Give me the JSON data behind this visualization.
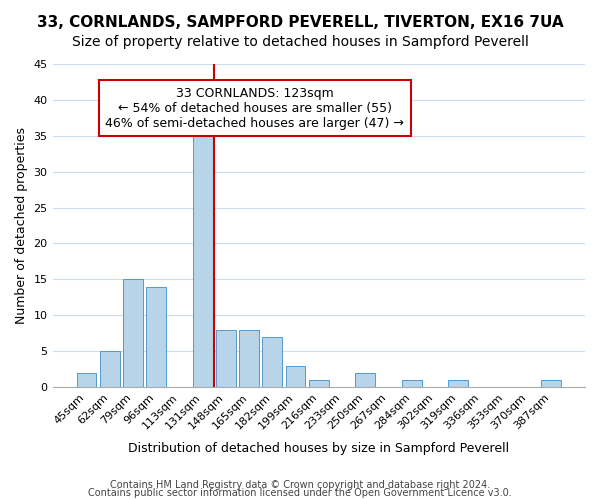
{
  "title": "33, CORNLANDS, SAMPFORD PEVERELL, TIVERTON, EX16 7UA",
  "subtitle": "Size of property relative to detached houses in Sampford Peverell",
  "xlabel": "Distribution of detached houses by size in Sampford Peverell",
  "ylabel": "Number of detached properties",
  "bin_labels": [
    "45sqm",
    "62sqm",
    "79sqm",
    "96sqm",
    "113sqm",
    "131sqm",
    "148sqm",
    "165sqm",
    "182sqm",
    "199sqm",
    "216sqm",
    "233sqm",
    "250sqm",
    "267sqm",
    "284sqm",
    "302sqm",
    "319sqm",
    "336sqm",
    "353sqm",
    "370sqm",
    "387sqm"
  ],
  "bar_heights": [
    2,
    5,
    15,
    14,
    0,
    35,
    8,
    8,
    7,
    3,
    1,
    0,
    2,
    0,
    1,
    0,
    1,
    0,
    0,
    0,
    1
  ],
  "bar_color": "#b8d4e8",
  "bar_edge_color": "#5599cc",
  "ylim": [
    0,
    45
  ],
  "yticks": [
    0,
    5,
    10,
    15,
    20,
    25,
    30,
    35,
    40,
    45
  ],
  "property_line_x": 5.5,
  "property_line_color": "#cc0000",
  "annotation_box_text": "33 CORNLANDS: 123sqm\n← 54% of detached houses are smaller (55)\n46% of semi-detached houses are larger (47) →",
  "annotation_box_color": "#ffffff",
  "annotation_box_edge_color": "#cc0000",
  "footer_line1": "Contains HM Land Registry data © Crown copyright and database right 2024.",
  "footer_line2": "Contains public sector information licensed under the Open Government Licence v3.0.",
  "background_color": "#ffffff",
  "grid_color": "#ccddee",
  "title_fontsize": 11,
  "subtitle_fontsize": 10,
  "axis_label_fontsize": 9,
  "tick_fontsize": 8,
  "annotation_fontsize": 9,
  "footer_fontsize": 7
}
